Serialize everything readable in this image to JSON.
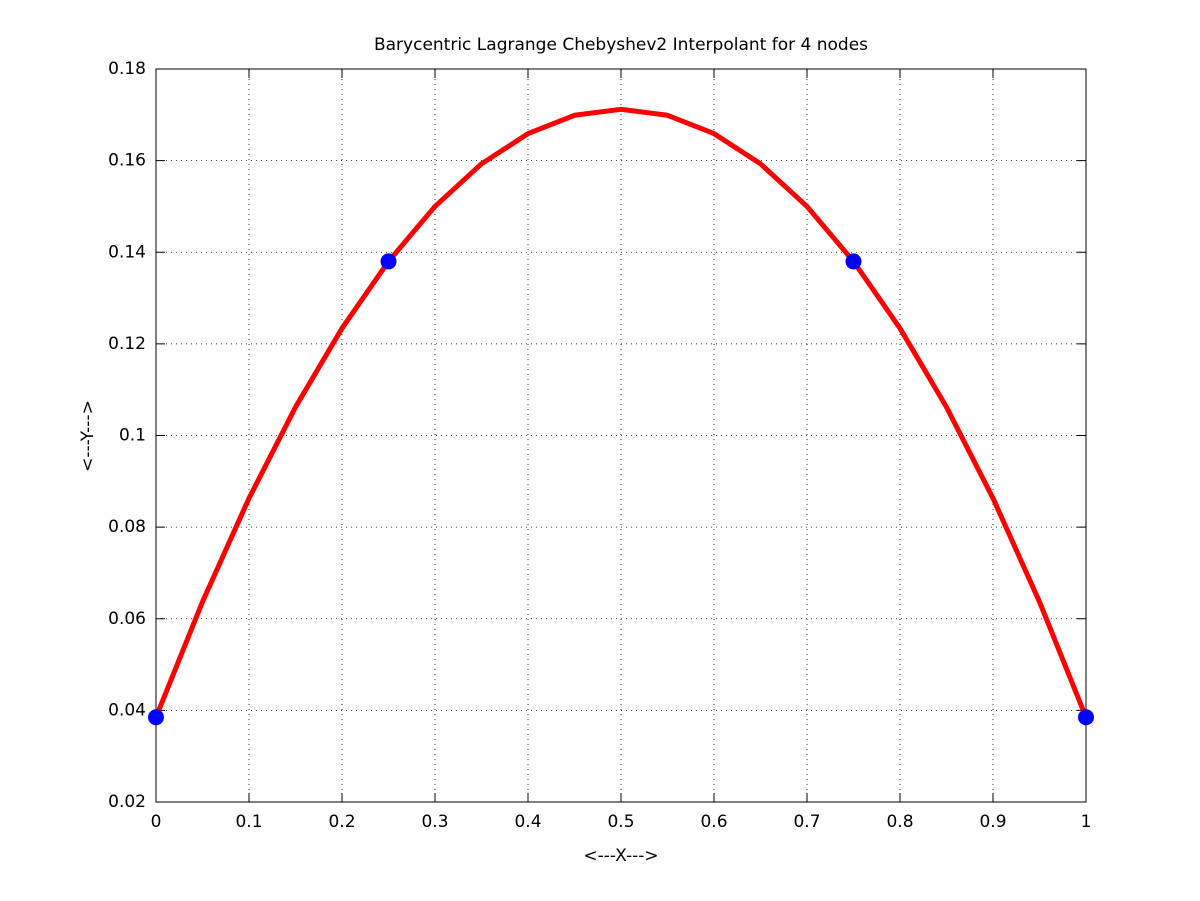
{
  "chart_data": {
    "type": "line",
    "title": "Barycentric Lagrange Chebyshev2 Interpolant for 4 nodes",
    "x_label": "<---X--->",
    "y_label": "<---Y--->",
    "xlim": [
      0,
      1
    ],
    "ylim": [
      0.02,
      0.18
    ],
    "xticks": [
      0,
      0.1,
      0.2,
      0.3,
      0.4,
      0.5,
      0.6,
      0.7,
      0.8,
      0.9,
      1
    ],
    "yticks": [
      0.02,
      0.04,
      0.06,
      0.08,
      0.1,
      0.12,
      0.14,
      0.16,
      0.18
    ],
    "grid": true,
    "series": [
      {
        "type": "line",
        "color": "#ff0000",
        "x": [
          0,
          0.05,
          0.1,
          0.15,
          0.2,
          0.25,
          0.3,
          0.35,
          0.4,
          0.45,
          0.5,
          0.55,
          0.6,
          0.65,
          0.7,
          0.75,
          0.8,
          0.85,
          0.9,
          0.95,
          1
        ],
        "values": [
          0.0385,
          0.0637,
          0.0863,
          0.1062,
          0.1234,
          0.138,
          0.15,
          0.1593,
          0.1659,
          0.1699,
          0.1712,
          0.1699,
          0.1659,
          0.1593,
          0.15,
          0.138,
          0.1234,
          0.1062,
          0.0863,
          0.0637,
          0.0385
        ]
      },
      {
        "type": "scatter",
        "color": "#0000ff",
        "x": [
          0,
          0.25,
          0.75,
          1
        ],
        "values": [
          0.0385,
          0.138,
          0.138,
          0.0385
        ]
      }
    ]
  }
}
